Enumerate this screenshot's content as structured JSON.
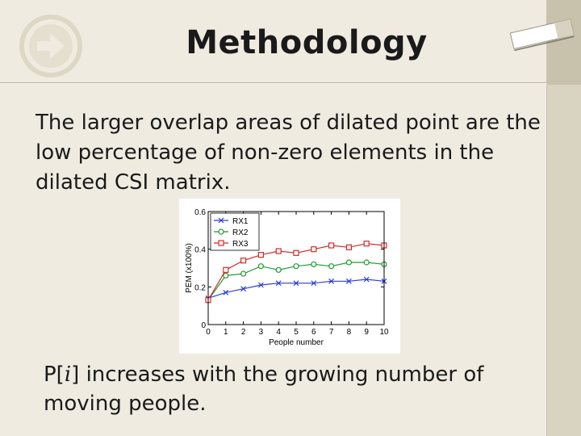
{
  "slide": {
    "title": "Methodology",
    "paragraph": "The larger overlap areas of dilated point are the low percentage of non-zero elements in the dilated CSI matrix.",
    "note": {
      "prefix": "P[",
      "var": "i",
      "suffix": "] increases with the growing number of moving people."
    },
    "colors": {
      "background": "#efebe0",
      "sidebar": "#d9d3c2",
      "logo_circle": "#ddd7c6"
    },
    "icons": [
      "arrow-circle-icon",
      "tag-icon"
    ]
  },
  "chart_data": {
    "type": "line",
    "xlabel": "People number",
    "ylabel": "PEM (x100%)",
    "x": [
      0,
      1,
      2,
      3,
      4,
      5,
      6,
      7,
      8,
      9,
      10
    ],
    "xlim": [
      0,
      10
    ],
    "ylim": [
      0,
      0.6
    ],
    "xticks": [
      "0",
      "1",
      "2",
      "3",
      "4",
      "5",
      "6",
      "7",
      "8",
      "9",
      "10"
    ],
    "yticks": [
      {
        "value": 0,
        "label": "0"
      },
      {
        "value": 0.2,
        "label": "0.2"
      },
      {
        "value": 0.4,
        "label": "0.4"
      },
      {
        "value": 0.6,
        "label": "0.6"
      }
    ],
    "grid": false,
    "legend_position": "top-left",
    "series": [
      {
        "name": "RX1",
        "color": "#2b3fd6",
        "marker": "x",
        "values": [
          0.14,
          0.17,
          0.19,
          0.21,
          0.22,
          0.22,
          0.22,
          0.23,
          0.23,
          0.24,
          0.23
        ]
      },
      {
        "name": "RX2",
        "color": "#1f9a2f",
        "marker": "o",
        "values": [
          0.13,
          0.26,
          0.27,
          0.31,
          0.29,
          0.31,
          0.32,
          0.31,
          0.33,
          0.33,
          0.32
        ]
      },
      {
        "name": "RX3",
        "color": "#d42a2a",
        "marker": "s",
        "values": [
          0.13,
          0.29,
          0.34,
          0.37,
          0.39,
          0.38,
          0.4,
          0.42,
          0.41,
          0.43,
          0.42
        ]
      }
    ]
  }
}
